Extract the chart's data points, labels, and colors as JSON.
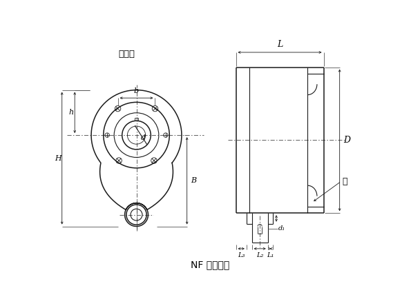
{
  "title": "NF 型逆止器",
  "label_qugai": "拆去盖",
  "label_gai": "盖",
  "bg_color": "#ffffff",
  "line_color": "#1a1a1a",
  "font_size_title": 10,
  "font_size_label": 9,
  "font_size_dim": 8
}
